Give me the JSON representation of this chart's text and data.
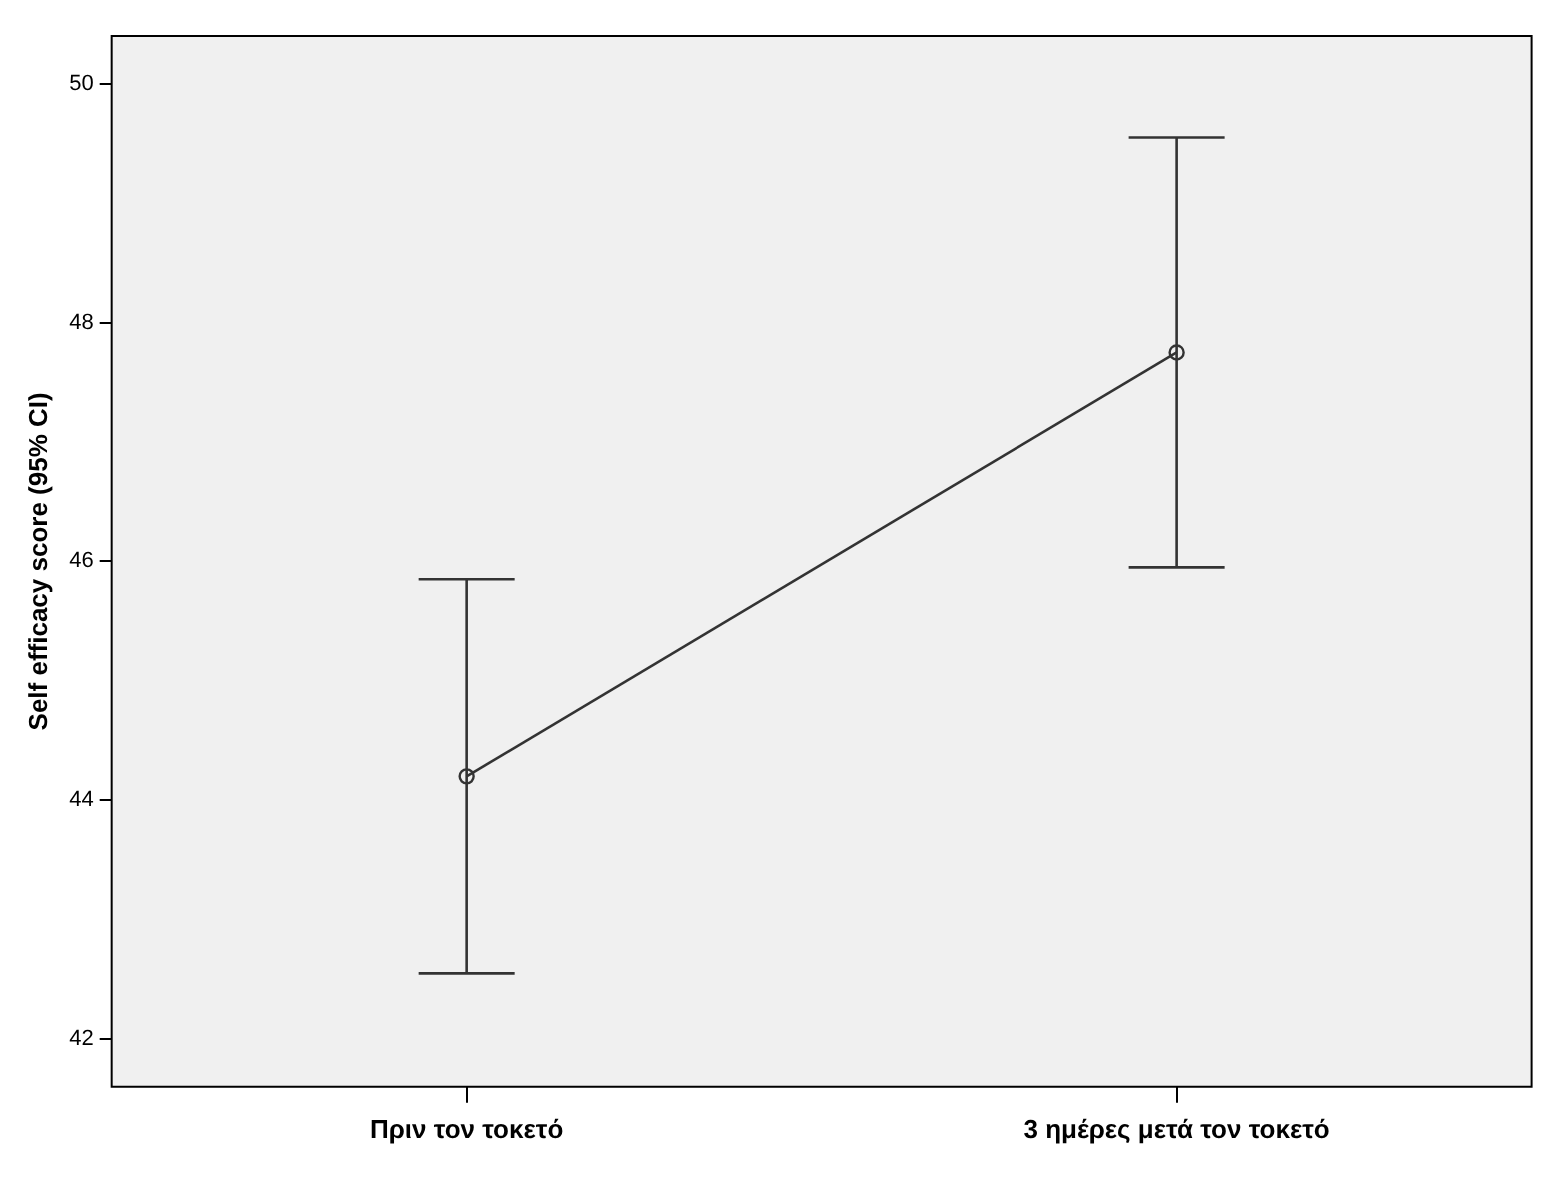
{
  "chart_data": {
    "type": "line",
    "ylabel": "Self efficacy score (95% CI)",
    "categories": [
      "Πριν τον τοκετό",
      "3 ημέρες μετά τον τοκετό"
    ],
    "series": [
      {
        "color": "#333333",
        "values": [
          44.2,
          47.75
        ],
        "errors": [
          1.65,
          1.8
        ]
      }
    ],
    "ylim": [
      41.6,
      50.4
    ],
    "yticks": [
      42,
      44,
      46,
      48,
      50
    ],
    "grid": false,
    "legend": false,
    "marker": "circle",
    "line_style": "solid"
  }
}
